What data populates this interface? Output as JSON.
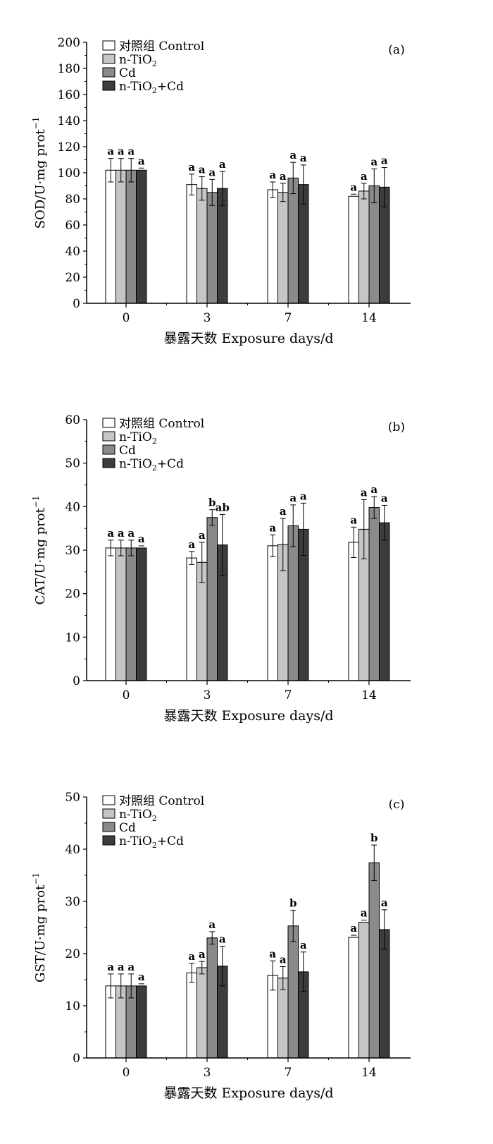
{
  "chart_data": [
    {
      "type": "bar",
      "panel_label": "(a)",
      "ylabel": "SOD/U·mg prot",
      "ylabel_sup": "−1",
      "xlabel": "暴露天数 Exposure days/d",
      "categories": [
        "0",
        "3",
        "7",
        "14"
      ],
      "ylim": [
        0,
        200
      ],
      "yticks": [
        0,
        20,
        40,
        60,
        80,
        100,
        120,
        140,
        160,
        180,
        200
      ],
      "series": [
        {
          "name": "对照组 Control",
          "color": "#ffffff",
          "values": [
            102,
            91,
            87,
            82
          ],
          "errors": [
            9,
            8,
            6,
            0
          ],
          "letters": [
            "a",
            "a",
            "a",
            "a"
          ]
        },
        {
          "name": "n-TiO",
          "name_sub": "2",
          "color": "#c6c6c6",
          "values": [
            102,
            88,
            85,
            86
          ],
          "errors": [
            9,
            9,
            7,
            6
          ],
          "letters": [
            "a",
            "a",
            "a",
            "a"
          ]
        },
        {
          "name": "Cd",
          "color": "#8a8a8a",
          "values": [
            102,
            85,
            96,
            90
          ],
          "errors": [
            9,
            10,
            12,
            13
          ],
          "letters": [
            "a",
            "a",
            "a",
            "a"
          ]
        },
        {
          "name": "n-TiO",
          "name_sub": "2",
          "name_suffix": "+Cd",
          "color": "#3c3c3c",
          "values": [
            102,
            88,
            91,
            89
          ],
          "errors": [
            0,
            13,
            15,
            15
          ],
          "letters": [
            "a",
            "a",
            "a",
            "a"
          ]
        }
      ]
    },
    {
      "type": "bar",
      "panel_label": "(b)",
      "ylabel": "CAT/U·mg prot",
      "ylabel_sup": "−1",
      "xlabel": "暴露天数 Exposure days/d",
      "categories": [
        "0",
        "3",
        "7",
        "14"
      ],
      "ylim": [
        0,
        60
      ],
      "yticks": [
        0,
        10,
        20,
        30,
        40,
        50,
        60
      ],
      "series": [
        {
          "name": "对照组 Control",
          "color": "#ffffff",
          "values": [
            30.5,
            28.2,
            31.0,
            31.8
          ],
          "errors": [
            1.8,
            1.5,
            2.5,
            3.5
          ],
          "letters": [
            "a",
            "a",
            "a",
            "a"
          ]
        },
        {
          "name": "n-TiO",
          "name_sub": "2",
          "color": "#c6c6c6",
          "values": [
            30.5,
            27.2,
            31.3,
            34.8
          ],
          "errors": [
            1.8,
            4.6,
            6.0,
            6.8
          ],
          "letters": [
            "a",
            "a",
            "a",
            "a"
          ]
        },
        {
          "name": "Cd",
          "color": "#8a8a8a",
          "values": [
            30.5,
            37.5,
            35.6,
            39.8
          ],
          "errors": [
            1.8,
            1.8,
            4.8,
            2.5
          ],
          "letters": [
            "a",
            "b",
            "a",
            "a"
          ]
        },
        {
          "name": "n-TiO",
          "name_sub": "2",
          "name_suffix": "+Cd",
          "color": "#3c3c3c",
          "values": [
            30.5,
            31.2,
            34.8,
            36.3
          ],
          "errors": [
            0,
            7.0,
            6.0,
            4.0
          ],
          "letters": [
            "a",
            "ab",
            "a",
            "a"
          ]
        }
      ]
    },
    {
      "type": "bar",
      "panel_label": "(c)",
      "ylabel": "GST/U·mg prot",
      "ylabel_sup": "−1",
      "xlabel": "暴露天数 Exposure days/d",
      "categories": [
        "0",
        "3",
        "7",
        "14"
      ],
      "ylim": [
        0,
        50
      ],
      "yticks": [
        0,
        10,
        20,
        30,
        40,
        50
      ],
      "series": [
        {
          "name": "对照组 Control",
          "color": "#ffffff",
          "values": [
            13.8,
            16.3,
            15.8,
            23.1
          ],
          "errors": [
            2.3,
            1.8,
            2.8,
            0
          ],
          "letters": [
            "a",
            "a",
            "a",
            "a"
          ]
        },
        {
          "name": "n-TiO",
          "name_sub": "2",
          "color": "#c6c6c6",
          "values": [
            13.8,
            17.3,
            15.3,
            26.0
          ],
          "errors": [
            2.3,
            1.2,
            2.2,
            0
          ],
          "letters": [
            "a",
            "a",
            "a",
            "a"
          ]
        },
        {
          "name": "Cd",
          "color": "#8a8a8a",
          "values": [
            13.8,
            23.0,
            25.3,
            37.4
          ],
          "errors": [
            2.3,
            1.2,
            3.0,
            3.4
          ],
          "letters": [
            "a",
            "a",
            "b",
            "b"
          ]
        },
        {
          "name": "n-TiO",
          "name_sub": "2",
          "name_suffix": "+Cd",
          "color": "#3c3c3c",
          "values": [
            13.8,
            17.6,
            16.5,
            24.6
          ],
          "errors": [
            0,
            3.8,
            3.8,
            3.8
          ],
          "letters": [
            "a",
            "a",
            "a",
            "a"
          ]
        }
      ]
    }
  ]
}
